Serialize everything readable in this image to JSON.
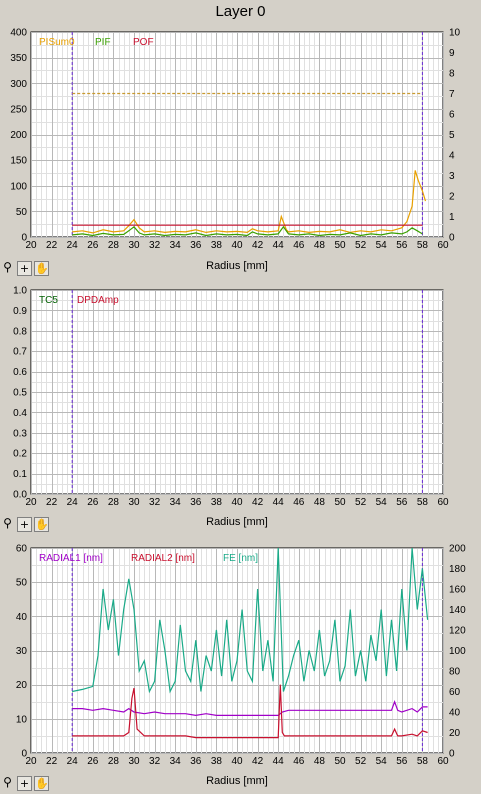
{
  "window": {
    "title": "Layer 0"
  },
  "toolbar": {
    "zoom_icon": "zoom-icon",
    "plus_label": "+",
    "hand_icon": "hand-icon"
  },
  "chart_data": [
    {
      "type": "line",
      "xlabel": "Radius [mm]",
      "xlim": [
        20,
        60
      ],
      "x_ticks": [
        20,
        22,
        24,
        26,
        28,
        30,
        32,
        34,
        36,
        38,
        40,
        42,
        44,
        46,
        48,
        50,
        52,
        54,
        56,
        58,
        60
      ],
      "ylim": [
        0,
        400
      ],
      "y_ticks": [
        0,
        50,
        100,
        150,
        200,
        250,
        300,
        350,
        400
      ],
      "y2lim": [
        0,
        10
      ],
      "y2_ticks": [
        0,
        1,
        2,
        3,
        4,
        5,
        6,
        7,
        8,
        9,
        10
      ],
      "grid": true,
      "legend_position": "top-left",
      "markers": {
        "vertical_lines_x": [
          24,
          58
        ],
        "color": "#6a2ad8"
      },
      "series": [
        {
          "name": "PISum0",
          "color": "#e8a000",
          "axis": "left",
          "x": [
            24,
            25,
            26,
            27,
            28,
            29,
            29.5,
            30,
            30.5,
            31,
            32,
            33,
            34,
            35,
            36,
            37,
            38,
            39,
            40,
            41,
            41.5,
            42,
            43,
            44,
            44.3,
            44.8,
            45,
            46,
            47,
            48,
            49,
            50,
            51,
            52,
            53,
            54,
            55,
            56,
            56.5,
            57,
            57.3,
            57.6,
            58,
            58.3
          ],
          "values": [
            10,
            12,
            8,
            14,
            10,
            12,
            22,
            34,
            18,
            10,
            12,
            9,
            11,
            10,
            14,
            9,
            12,
            10,
            11,
            9,
            16,
            12,
            10,
            12,
            40,
            14,
            10,
            12,
            9,
            11,
            10,
            14,
            9,
            12,
            10,
            14,
            12,
            18,
            30,
            60,
            130,
            110,
            90,
            70
          ]
        },
        {
          "name": "PIF",
          "color": "#3aa000",
          "axis": "left",
          "x": [
            24,
            25,
            26,
            27,
            28,
            29,
            29.5,
            30,
            30.5,
            31,
            32,
            33,
            34,
            35,
            36,
            37,
            38,
            39,
            40,
            41,
            41.5,
            42,
            43,
            44,
            44.5,
            45,
            46,
            47,
            48,
            49,
            50,
            51,
            52,
            53,
            54,
            55,
            56,
            56.5,
            57,
            57.5,
            58
          ],
          "values": [
            4,
            6,
            3,
            7,
            4,
            5,
            12,
            20,
            8,
            4,
            6,
            3,
            5,
            4,
            8,
            3,
            6,
            4,
            5,
            3,
            10,
            6,
            4,
            6,
            20,
            6,
            4,
            6,
            3,
            5,
            4,
            8,
            3,
            6,
            4,
            8,
            6,
            10,
            18,
            12,
            6
          ]
        },
        {
          "name": "POF",
          "color": "#c8102e",
          "axis": "left",
          "x": [
            24,
            30,
            58
          ],
          "values": [
            23,
            23,
            23
          ]
        },
        {
          "name": "",
          "color": "#c89a30",
          "axis": "left",
          "style": "dashed",
          "x": [
            24,
            58
          ],
          "values": [
            280,
            280
          ]
        }
      ]
    },
    {
      "type": "line",
      "xlabel": "Radius [mm]",
      "xlim": [
        20,
        60
      ],
      "x_ticks": [
        20,
        22,
        24,
        26,
        28,
        30,
        32,
        34,
        36,
        38,
        40,
        42,
        44,
        46,
        48,
        50,
        52,
        54,
        56,
        58,
        60
      ],
      "ylim": [
        0,
        1
      ],
      "y_ticks": [
        "0.0",
        "0.1",
        "0.2",
        "0.3",
        "0.4",
        "0.5",
        "0.6",
        "0.7",
        "0.8",
        "0.9",
        "1.0"
      ],
      "grid": true,
      "legend_position": "top-left",
      "markers": {
        "vertical_lines_x": [
          24,
          58
        ],
        "color": "#6a2ad8"
      },
      "series": [
        {
          "name": "TC5",
          "color": "#006000",
          "axis": "left",
          "x": [],
          "values": []
        },
        {
          "name": "DPDAmp",
          "color": "#c8102e",
          "axis": "left",
          "x": [],
          "values": []
        }
      ]
    },
    {
      "type": "line",
      "xlabel": "Radius [mm]",
      "xlim": [
        20,
        60
      ],
      "x_ticks": [
        20,
        22,
        24,
        26,
        28,
        30,
        32,
        34,
        36,
        38,
        40,
        42,
        44,
        46,
        48,
        50,
        52,
        54,
        56,
        58,
        60
      ],
      "ylim": [
        0,
        60
      ],
      "y_ticks": [
        0,
        10,
        20,
        30,
        40,
        50,
        60
      ],
      "y2lim": [
        0,
        200
      ],
      "y2_ticks": [
        0,
        20,
        40,
        60,
        80,
        100,
        120,
        140,
        160,
        180,
        200
      ],
      "grid": true,
      "legend_position": "top-left",
      "markers": {
        "vertical_lines_x": [
          24,
          58
        ],
        "color": "#6a2ad8"
      },
      "series": [
        {
          "name": "RADIAL1 [nm]",
          "color": "#a000c8",
          "axis": "left",
          "x": [
            24,
            25,
            26,
            27,
            28,
            29,
            29.5,
            30,
            31,
            32,
            33,
            34,
            35,
            36,
            37,
            38,
            39,
            40,
            41,
            42,
            43,
            44,
            44.4,
            45,
            46,
            47,
            48,
            49,
            50,
            51,
            52,
            53,
            54,
            55,
            55.3,
            55.6,
            56,
            57,
            57.5,
            58,
            58.5
          ],
          "values": [
            13,
            13,
            12.5,
            13,
            12.5,
            12,
            13,
            12,
            11.5,
            12,
            11.5,
            11.5,
            11.5,
            11,
            11.5,
            11,
            11,
            11,
            11,
            11,
            11,
            11,
            12,
            12.5,
            12.5,
            12.5,
            12.5,
            12.5,
            12.5,
            12.5,
            12.5,
            12.5,
            12.5,
            12.5,
            15,
            12.5,
            12,
            13,
            12,
            13.5,
            13.5
          ]
        },
        {
          "name": "RADIAL2 [nm]",
          "color": "#c8102e",
          "axis": "left",
          "x": [
            24,
            25,
            26,
            27,
            28,
            29,
            29.5,
            29.8,
            30,
            30.3,
            31,
            32,
            33,
            34,
            35,
            36,
            37,
            38,
            39,
            40,
            41,
            42,
            43,
            44,
            44.2,
            44.4,
            44.6,
            45,
            46,
            47,
            48,
            49,
            50,
            51,
            52,
            53,
            54,
            55,
            55.3,
            55.6,
            56,
            57,
            57.5,
            58,
            58.5
          ],
          "values": [
            5,
            5,
            5,
            5,
            5,
            5,
            6,
            16,
            19,
            7,
            5,
            5,
            5,
            5,
            5,
            4.5,
            4.5,
            4.5,
            4.5,
            4.5,
            4.5,
            4.5,
            4.5,
            4.5,
            20,
            6,
            5,
            5,
            5,
            5,
            5,
            5,
            5,
            5,
            5,
            5,
            5,
            5,
            7,
            5,
            5,
            5.5,
            5,
            6.5,
            6
          ]
        },
        {
          "name": "FE [nm]",
          "color": "#1aaa88",
          "axis": "right",
          "x": [
            24,
            25,
            26,
            26.5,
            27,
            27.5,
            28,
            28.5,
            29,
            29.5,
            30,
            30.5,
            31,
            31.5,
            32,
            32.5,
            33,
            33.5,
            34,
            34.5,
            35,
            35.5,
            36,
            36.5,
            37,
            37.5,
            38,
            38.5,
            39,
            39.5,
            40,
            40.5,
            41,
            41.5,
            42,
            42.5,
            43,
            43.5,
            44,
            44.5,
            45,
            45.5,
            46,
            46.5,
            47,
            47.5,
            48,
            48.5,
            49,
            49.5,
            50,
            50.5,
            51,
            51.5,
            52,
            52.5,
            53,
            53.5,
            54,
            54.5,
            55,
            55.5,
            56,
            56.5,
            57,
            57.5,
            58,
            58.5
          ],
          "values": [
            60,
            62,
            65,
            95,
            160,
            120,
            150,
            95,
            140,
            170,
            140,
            80,
            90,
            60,
            70,
            130,
            100,
            60,
            70,
            125,
            80,
            70,
            110,
            60,
            95,
            80,
            120,
            75,
            130,
            70,
            90,
            140,
            80,
            70,
            160,
            80,
            110,
            70,
            200,
            60,
            75,
            95,
            110,
            70,
            100,
            80,
            120,
            75,
            90,
            130,
            70,
            85,
            140,
            75,
            100,
            70,
            115,
            90,
            140,
            75,
            130,
            80,
            160,
            100,
            200,
            140,
            180,
            130
          ]
        }
      ]
    }
  ]
}
